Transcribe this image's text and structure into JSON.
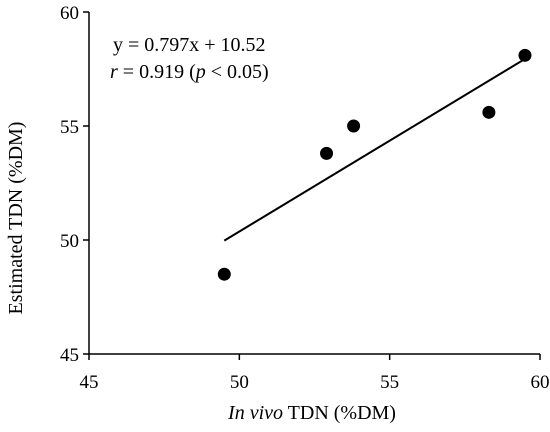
{
  "chart_data": {
    "type": "scatter",
    "xlabel_italic": "In vivo",
    "xlabel_rest": " TDN (%DM)",
    "ylabel": "Estimated TDN (%DM)",
    "xlim": [
      45,
      60
    ],
    "ylim": [
      45,
      60
    ],
    "xticks": [
      45,
      50,
      55,
      60
    ],
    "yticks": [
      45,
      50,
      55,
      60
    ],
    "grid": false,
    "points": [
      {
        "x": 49.5,
        "y": 48.5
      },
      {
        "x": 52.9,
        "y": 53.8
      },
      {
        "x": 53.8,
        "y": 55.0
      },
      {
        "x": 58.3,
        "y": 55.6
      },
      {
        "x": 59.5,
        "y": 58.1
      }
    ],
    "trendline": {
      "slope": 0.797,
      "intercept": 10.52,
      "x_range": [
        49.5,
        59.5
      ]
    },
    "equation_text": "y = 0.797x + 10.52",
    "r_symbol": "r",
    "r_mid": " = 0.919 (",
    "p_symbol": "p",
    "p_rest": " < 0.05)"
  }
}
